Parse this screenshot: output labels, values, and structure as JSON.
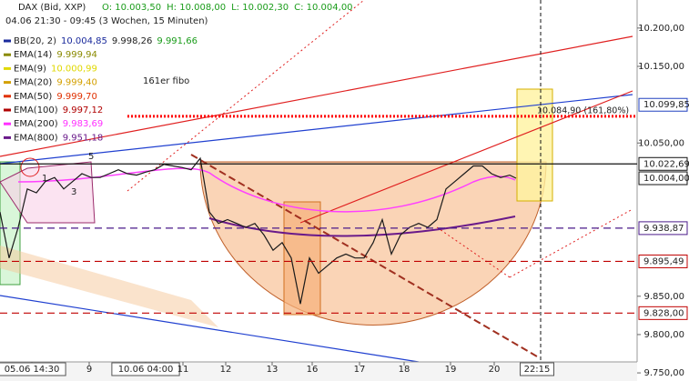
{
  "chart_data": {
    "type": "line",
    "title": "DAX (Bid, XXP)",
    "ohlc": [
      "O: 10.003,50",
      "H: 10.008,00",
      "L: 10.002,30",
      "C: 10.004,00"
    ],
    "subtitle": "04.06 21:30 - 09:45 (3 Wochen, 15 Minuten)",
    "indicators": [
      {
        "name": "BB(20, 2)",
        "values": [
          "10.004,85",
          "9.998,26",
          "9.991,66"
        ],
        "colors": [
          "#1a2a9c",
          "#222222",
          "#1a9c1a"
        ]
      },
      {
        "name": "EMA(14)",
        "values": [
          "9.999,94"
        ],
        "colors": [
          "#8a8a00"
        ]
      },
      {
        "name": "EMA(9)",
        "values": [
          "10.000,99"
        ],
        "colors": [
          "#e0d800"
        ]
      },
      {
        "name": "EMA(20)",
        "values": [
          "9.999,40"
        ],
        "colors": [
          "#d4a000"
        ]
      },
      {
        "name": "EMA(50)",
        "values": [
          "9.999,70"
        ],
        "colors": [
          "#e03000"
        ]
      },
      {
        "name": "EMA(100)",
        "values": [
          "9.997,12"
        ],
        "colors": [
          "#b00000"
        ]
      },
      {
        "name": "EMA(200)",
        "values": [
          "9.983,69"
        ],
        "colors": [
          "#ff30ff"
        ]
      },
      {
        "name": "EMA(800)",
        "values": [
          "9.951,18"
        ],
        "colors": [
          "#6a1a8a"
        ]
      }
    ],
    "x": [
      0,
      1,
      2,
      3,
      4,
      5,
      6,
      7,
      8,
      9,
      10,
      11,
      12,
      13,
      14,
      15,
      16,
      17,
      18,
      19,
      20,
      21,
      22,
      23,
      24,
      25,
      26,
      27,
      28,
      29,
      30,
      31,
      32,
      33,
      34,
      35,
      36,
      37,
      38,
      39,
      40,
      41,
      42,
      43,
      44,
      45,
      46,
      47,
      48,
      49,
      50,
      51,
      52,
      53,
      54,
      55,
      56,
      56.7
    ],
    "values": [
      9960,
      9900,
      9940,
      9990,
      9985,
      10000,
      10005,
      9990,
      10000,
      10010,
      10005,
      10005,
      10010,
      10015,
      10010,
      10008,
      10012,
      10015,
      10022,
      10020,
      10018,
      10015,
      10030,
      9960,
      9945,
      9950,
      9945,
      9940,
      9945,
      9930,
      9910,
      9920,
      9900,
      9840,
      9900,
      9880,
      9890,
      9900,
      9905,
      9900,
      9900,
      9920,
      9950,
      9905,
      9930,
      9940,
      9945,
      9940,
      9950,
      9990,
      10000,
      10010,
      10020,
      10020,
      10010,
      10005,
      10008,
      10004
    ],
    "color": "#1a1a1a",
    "xlim": [
      0,
      70
    ],
    "ylim": [
      9739.4,
      10236.6
    ],
    "yticks": [
      {
        "value": 10200,
        "label": "10.200,00"
      },
      {
        "value": 10150,
        "label": "10.150,00"
      },
      {
        "value": 10050,
        "label": "10.050,00"
      },
      {
        "value": 9850,
        "label": "9.850,00"
      },
      {
        "value": 9800,
        "label": "9.800,00"
      },
      {
        "value": 9750,
        "label": "9.750,00"
      }
    ],
    "xticks": [
      {
        "value": 3.5,
        "label": "05.06 14:30",
        "boxed": true
      },
      {
        "value": 9.8,
        "label": "9"
      },
      {
        "value": 16,
        "label": "10.06 04:00",
        "boxed": true
      },
      {
        "value": 20.1,
        "label": "11"
      },
      {
        "value": 24.8,
        "label": "12"
      },
      {
        "value": 29.9,
        "label": "13"
      },
      {
        "value": 34.3,
        "label": "16"
      },
      {
        "value": 39.5,
        "label": "17"
      },
      {
        "value": 44.4,
        "label": "18"
      },
      {
        "value": 49.5,
        "label": "19"
      },
      {
        "value": 54.3,
        "label": "20"
      },
      {
        "value": 59,
        "label": "22:15",
        "boxed": true
      }
    ],
    "levels": [
      {
        "value": 10099.85,
        "label": "10.099,85",
        "color": "#2040c0",
        "style": "none"
      },
      {
        "value": 10022.69,
        "label": "10.022,69",
        "color": "#111111",
        "style": "solid"
      },
      {
        "value": 10004.0,
        "label": "10.004,00",
        "color": "#111111",
        "style": "none"
      },
      {
        "value": 9938.87,
        "label": "9.938,87",
        "color": "#4a1a8a",
        "style": "dashed"
      },
      {
        "value": 9895.49,
        "label": "9.895,49",
        "color": "#c00000",
        "style": "dashed"
      },
      {
        "value": 9828.0,
        "label": "9.828,00",
        "color": "#c00000",
        "style": "dashed"
      }
    ],
    "fibo": {
      "value": 10084.9,
      "label": "10.084,90 (161,80%)",
      "color": "#ff0000"
    },
    "annotations": [
      "161er fibo",
      "1",
      "3",
      "5"
    ]
  }
}
